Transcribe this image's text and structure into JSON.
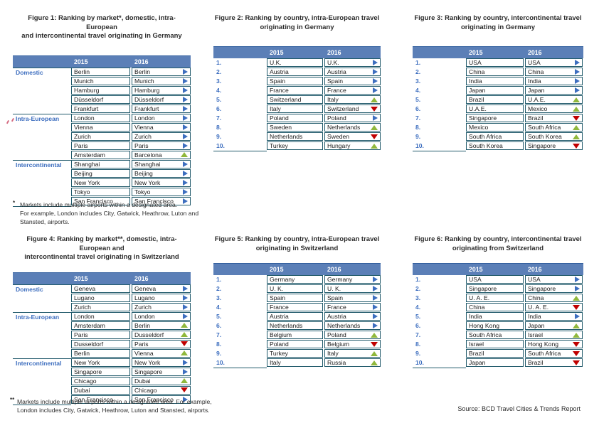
{
  "columns": {
    "col_2015": "2015",
    "col_2016": "2016"
  },
  "colors": {
    "header_blue": "#5b7fb7",
    "table_border": "#215a6b",
    "label_blue": "#3d6ebf",
    "trend_same_blue": "#3d6ebf",
    "trend_up_green": "#90b83c",
    "trend_down_red": "#c00000"
  },
  "source_note": "Source: BCD Travel Cities & Trends Report",
  "figures": [
    {
      "title_lines": [
        "Figure 1: Ranking by market*, domestic, intra-European",
        "and intercontinental travel originating in Germany"
      ],
      "footnote": {
        "marker": "*",
        "lines": [
          "Markets include multiple airports within a designated area.",
          "For example, London includes City, Gatwick, Heathrow, Luton and",
          "Stansted, airports."
        ]
      },
      "rows": [
        {
          "label": "Domestic",
          "group_start": true,
          "y2015": "Berlin",
          "y2016": "Berlin",
          "trend": "same"
        },
        {
          "label": "",
          "y2015": "Munich",
          "y2016": "Munich",
          "trend": "same"
        },
        {
          "label": "",
          "y2015": "Hamburg",
          "y2016": "Hamburg",
          "trend": "same"
        },
        {
          "label": "",
          "y2015": "Düsseldorf",
          "y2016": "Düsseldorf",
          "trend": "same"
        },
        {
          "label": "",
          "y2015": "Frankfurt",
          "y2016": "Frankfurt",
          "trend": "same"
        },
        {
          "label": "Intra-European",
          "group_start": true,
          "y2015": "London",
          "y2016": "London",
          "trend": "same"
        },
        {
          "label": "",
          "y2015": "Vienna",
          "y2016": "Vienna",
          "trend": "same"
        },
        {
          "label": "",
          "y2015": "Zurich",
          "y2016": "Zurich",
          "trend": "same"
        },
        {
          "label": "",
          "y2015": "Paris",
          "y2016": "Paris",
          "trend": "same"
        },
        {
          "label": "",
          "y2015": "Amsterdam",
          "y2016": "Barcelona",
          "trend": "up"
        },
        {
          "label": "Intercontinental",
          "group_start": true,
          "y2015": "Shanghai",
          "y2016": "Shanghai",
          "trend": "same"
        },
        {
          "label": "",
          "y2015": "Beijing",
          "y2016": "Beijing",
          "trend": "same"
        },
        {
          "label": "",
          "y2015": "New York",
          "y2016": "New York",
          "trend": "same"
        },
        {
          "label": "",
          "y2015": "Tokyo",
          "y2016": "Tokyo",
          "trend": "same"
        },
        {
          "label": "",
          "y2015": "San Francisco",
          "y2016": "San Francisco",
          "trend": "same"
        }
      ]
    },
    {
      "title_lines": [
        "Figure 2: Ranking by country, intra-European travel",
        "originating in Germany"
      ],
      "rows": [
        {
          "label": "1.",
          "y2015": "U.K.",
          "y2016": "U.K.",
          "trend": "same"
        },
        {
          "label": "2.",
          "y2015": "Austria",
          "y2016": "Austria",
          "trend": "same"
        },
        {
          "label": "3.",
          "y2015": "Spain",
          "y2016": "Spain",
          "trend": "same"
        },
        {
          "label": "4.",
          "y2015": "France",
          "y2016": "France",
          "trend": "same"
        },
        {
          "label": "5.",
          "y2015": "Switzerland",
          "y2016": "Italy",
          "trend": "up"
        },
        {
          "label": "6.",
          "y2015": "Italy",
          "y2016": "Switzerland",
          "trend": "down"
        },
        {
          "label": "7.",
          "y2015": "Poland",
          "y2016": "Poland",
          "trend": "same"
        },
        {
          "label": "8.",
          "y2015": "Sweden",
          "y2016": "Netherlands",
          "trend": "up"
        },
        {
          "label": "9.",
          "y2015": "Netherlands",
          "y2016": "Sweden",
          "trend": "down"
        },
        {
          "label": "10.",
          "y2015": "Turkey",
          "y2016": "Hungary",
          "trend": "up"
        }
      ]
    },
    {
      "title_lines": [
        "Figure 3: Ranking by country, intercontinental travel",
        "originating in Germany"
      ],
      "rows": [
        {
          "label": "1.",
          "y2015": "USA",
          "y2016": "USA",
          "trend": "same"
        },
        {
          "label": "2.",
          "y2015": "China",
          "y2016": "China",
          "trend": "same"
        },
        {
          "label": "3.",
          "y2015": "India",
          "y2016": "India",
          "trend": "same"
        },
        {
          "label": "4.",
          "y2015": "Japan",
          "y2016": "Japan",
          "trend": "same"
        },
        {
          "label": "5.",
          "y2015": "Brazil",
          "y2016": "U.A.E.",
          "trend": "up"
        },
        {
          "label": "6.",
          "y2015": "U.A.E.",
          "y2016": "Mexico",
          "trend": "up"
        },
        {
          "label": "7.",
          "y2015": "Singapore",
          "y2016": "Brazil",
          "trend": "down"
        },
        {
          "label": "8.",
          "y2015": "Mexico",
          "y2016": "South Africa",
          "trend": "up"
        },
        {
          "label": "9.",
          "y2015": "South Africa",
          "y2016": "South Korea",
          "trend": "up"
        },
        {
          "label": "10.",
          "y2015": "South Korea",
          "y2016": "Singapore",
          "trend": "down"
        }
      ]
    },
    {
      "title_lines": [
        "Figure 4: Ranking by market**, domestic, intra-European and",
        "intercontinental travel originating in Switzerland"
      ],
      "footnote": {
        "marker": "**",
        "lines": [
          "Markets include multiple airports within a designated area. For example,",
          "London includes City, Gatwick, Heathrow, Luton and Stansted, airports."
        ]
      },
      "rows": [
        {
          "label": "Domestic",
          "group_start": true,
          "y2015": "Geneva",
          "y2016": "Geneva",
          "trend": "same"
        },
        {
          "label": "",
          "y2015": "Lugano",
          "y2016": "Lugano",
          "trend": "same"
        },
        {
          "label": "",
          "y2015": "Zurich",
          "y2016": "Zurich",
          "trend": "same"
        },
        {
          "label": "Intra-European",
          "group_start": true,
          "y2015": "London",
          "y2016": "London",
          "trend": "same"
        },
        {
          "label": "",
          "y2015": "Amsterdam",
          "y2016": "Berlin",
          "trend": "up"
        },
        {
          "label": "",
          "y2015": "Paris",
          "y2016": "Dusseldorf",
          "trend": "up"
        },
        {
          "label": "",
          "y2015": "Dusseldorf",
          "y2016": "Paris",
          "trend": "down"
        },
        {
          "label": "",
          "y2015": "Berlin",
          "y2016": "Vienna",
          "trend": "up"
        },
        {
          "label": "Intercontinental",
          "group_start": true,
          "y2015": "New York",
          "y2016": "New York",
          "trend": "same"
        },
        {
          "label": "",
          "y2015": "Singapore",
          "y2016": "Singapore",
          "trend": "same"
        },
        {
          "label": "",
          "y2015": "Chicago",
          "y2016": "Dubai",
          "trend": "up"
        },
        {
          "label": "",
          "y2015": "Dubai",
          "y2016": "Chicago",
          "trend": "down"
        },
        {
          "label": "",
          "y2015": "San Francisco",
          "y2016": "San Francisco",
          "trend": "same"
        }
      ]
    },
    {
      "title_lines": [
        "Figure 5: Ranking by country, intra-European travel",
        "originating in Switzerland"
      ],
      "rows": [
        {
          "label": "1.",
          "y2015": "Germany",
          "y2016": "Germany",
          "trend": "same"
        },
        {
          "label": "2.",
          "y2015": "U. K.",
          "y2016": "U. K.",
          "trend": "same"
        },
        {
          "label": "3.",
          "y2015": "Spain",
          "y2016": "Spain",
          "trend": "same"
        },
        {
          "label": "4.",
          "y2015": "France",
          "y2016": "France",
          "trend": "same"
        },
        {
          "label": "5.",
          "y2015": "Austria",
          "y2016": "Austria",
          "trend": "same"
        },
        {
          "label": "6.",
          "y2015": "Netherlands",
          "y2016": "Netherlands",
          "trend": "same"
        },
        {
          "label": "7.",
          "y2015": "Belgium",
          "y2016": "Poland",
          "trend": "up"
        },
        {
          "label": "8.",
          "y2015": "Poland",
          "y2016": "Belgium",
          "trend": "down"
        },
        {
          "label": "9.",
          "y2015": "Turkey",
          "y2016": "Italy",
          "trend": "up"
        },
        {
          "label": "10.",
          "y2015": "Italy",
          "y2016": "Russia",
          "trend": "up"
        }
      ]
    },
    {
      "title_lines": [
        "Figure 6: Ranking by country, intercontinental travel",
        "originating from Switzerland"
      ],
      "rows": [
        {
          "label": "1.",
          "y2015": "USA",
          "y2016": "USA",
          "trend": "same"
        },
        {
          "label": "2.",
          "y2015": "Singapore",
          "y2016": "Singapore",
          "trend": "same"
        },
        {
          "label": "3.",
          "y2015": "U. A. E.",
          "y2016": "China",
          "trend": "up"
        },
        {
          "label": "4.",
          "y2015": "China",
          "y2016": "U. A. E.",
          "trend": "down"
        },
        {
          "label": "5.",
          "y2015": "India",
          "y2016": "India",
          "trend": "same"
        },
        {
          "label": "6.",
          "y2015": "Hong Kong",
          "y2016": "Japan",
          "trend": "up"
        },
        {
          "label": "7.",
          "y2015": "South Africa",
          "y2016": "Israel",
          "trend": "up"
        },
        {
          "label": "8.",
          "y2015": "Israel",
          "y2016": "Hong Kong",
          "trend": "down"
        },
        {
          "label": "9.",
          "y2015": "Brazil",
          "y2016": "South Africa",
          "trend": "down"
        },
        {
          "label": "10.",
          "y2015": "Japan",
          "y2016": "Brazil",
          "trend": "down"
        }
      ]
    }
  ]
}
